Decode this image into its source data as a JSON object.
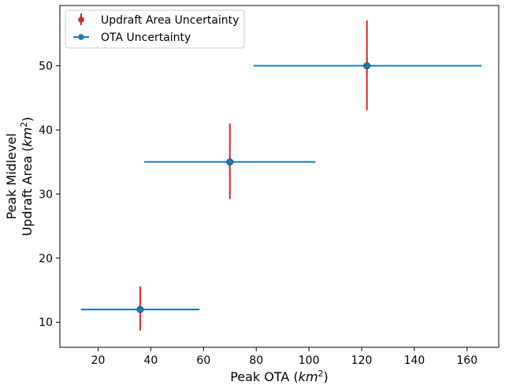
{
  "chart_data": {
    "type": "scatter",
    "xlabel": "Peak OTA (",
    "xlabel_italic": "km",
    "xlabel_sup": "2",
    "xlabel_close": ")",
    "ylabel_line1": "Peak Midlevel",
    "ylabel_line2": "Updraft Area (",
    "ylabel_italic": "km",
    "ylabel_sup": "2",
    "ylabel_close": ")",
    "xlim": [
      5.5,
      172
    ],
    "ylim": [
      6.1,
      59.4
    ],
    "xticks": [
      20,
      40,
      60,
      80,
      100,
      120,
      140,
      160
    ],
    "yticks": [
      10,
      20,
      30,
      40,
      50
    ],
    "grid": false,
    "legend_position": "top-left",
    "colors": {
      "updraft_uncertainty": "#d62728",
      "ota_uncertainty": "#1f77b4",
      "marker_edge": "#1f4f7a"
    },
    "points": [
      {
        "x": 36,
        "y": 12,
        "x_low": 13.5,
        "x_high": 58.5,
        "y_low": 8.7,
        "y_high": 15.6
      },
      {
        "x": 70,
        "y": 35,
        "x_low": 37.5,
        "x_high": 102.5,
        "y_low": 29.2,
        "y_high": 41
      },
      {
        "x": 122,
        "y": 50,
        "x_low": 79,
        "x_high": 165.5,
        "y_low": 43.1,
        "y_high": 57.1
      }
    ],
    "series": [
      {
        "name": "Updraft Area Uncertainty",
        "key": "updraft_uncertainty"
      },
      {
        "name": "OTA Uncertainty",
        "key": "ota_uncertainty"
      }
    ]
  }
}
